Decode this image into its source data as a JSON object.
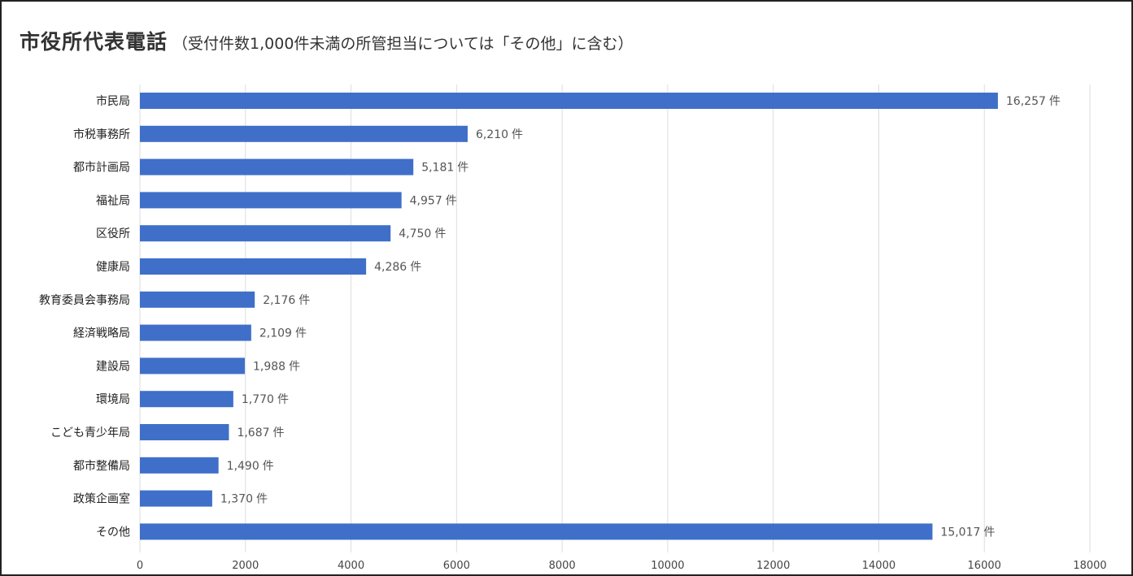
{
  "chart_data": {
    "type": "bar",
    "orientation": "horizontal",
    "title": "市役所代表電話",
    "subtitle": "（受付件数1,000件未満の所管担当については「その他」に含む）",
    "xlabel": "",
    "ylabel": "",
    "value_suffix": "件",
    "xlim": [
      0,
      18000
    ],
    "xticks": [
      "0",
      "2000",
      "4000",
      "6000",
      "8000",
      "10000",
      "12000",
      "14000",
      "16000",
      "18000"
    ],
    "grid": "vertical",
    "bar_color": "#3f6fc9",
    "categories": [
      "市民局",
      "市税事務所",
      "都市計画局",
      "福祉局",
      "区役所",
      "健康局",
      "教育委員会事務局",
      "経済戦略局",
      "建設局",
      "環境局",
      "こども青少年局",
      "都市整備局",
      "政策企画室",
      "その他"
    ],
    "values": [
      16257,
      6210,
      5181,
      4957,
      4750,
      4286,
      2176,
      2109,
      1988,
      1770,
      1687,
      1490,
      1370,
      15017
    ],
    "value_labels": [
      "16,257",
      "6,210",
      "5,181",
      "4,957",
      "4,750",
      "4,286",
      "2,176",
      "2,109",
      "1,988",
      "1,770",
      "1,687",
      "1,490",
      "1,370",
      "15,017"
    ]
  }
}
